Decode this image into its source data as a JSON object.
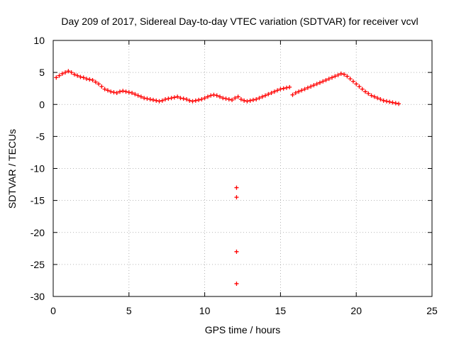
{
  "chart_data": {
    "type": "scatter",
    "title": "Day 209 of 2017, Sidereal Day-to-day VTEC variation (SDTVAR) for receiver vcvl",
    "xlabel": "GPS time / hours",
    "ylabel": "SDTVAR / TECUs",
    "xlim": [
      0,
      25
    ],
    "ylim": [
      -30,
      10
    ],
    "x_ticks": [
      0,
      5,
      10,
      15,
      20,
      25
    ],
    "y_ticks": [
      -30,
      -25,
      -20,
      -15,
      -10,
      -5,
      0,
      5,
      10
    ],
    "grid": true,
    "marker": "+",
    "color": "#ff0000",
    "series": [
      {
        "name": "SDTVAR",
        "x": [
          0.2,
          0.4,
          0.6,
          0.8,
          1.0,
          1.2,
          1.4,
          1.6,
          1.8,
          2.0,
          2.2,
          2.4,
          2.6,
          2.8,
          3.0,
          3.2,
          3.4,
          3.6,
          3.8,
          4.0,
          4.2,
          4.4,
          4.6,
          4.8,
          5.0,
          5.2,
          5.4,
          5.6,
          5.8,
          6.0,
          6.2,
          6.4,
          6.6,
          6.8,
          7.0,
          7.2,
          7.4,
          7.6,
          7.8,
          8.0,
          8.2,
          8.4,
          8.6,
          8.8,
          9.0,
          9.2,
          9.4,
          9.6,
          9.8,
          10.0,
          10.2,
          10.4,
          10.6,
          10.8,
          11.0,
          11.2,
          11.4,
          11.6,
          11.8,
          12.0,
          12.2,
          12.4,
          12.6,
          12.8,
          13.0,
          13.2,
          13.4,
          13.6,
          13.8,
          14.0,
          14.2,
          14.4,
          14.6,
          14.8,
          15.0,
          15.2,
          15.4,
          15.6,
          15.8,
          16.0,
          16.2,
          16.4,
          16.6,
          16.8,
          17.0,
          17.2,
          17.4,
          17.6,
          17.8,
          18.0,
          18.2,
          18.4,
          18.6,
          18.8,
          19.0,
          19.2,
          19.4,
          19.6,
          19.8,
          20.0,
          20.2,
          20.4,
          20.6,
          20.8,
          21.0,
          21.2,
          21.4,
          21.6,
          21.8,
          22.0,
          22.2,
          22.4,
          22.6,
          22.8,
          12.1,
          12.1,
          12.1,
          12.1
        ],
        "y": [
          4.2,
          4.5,
          4.8,
          5.0,
          5.2,
          5.0,
          4.7,
          4.5,
          4.3,
          4.2,
          4.0,
          3.9,
          3.8,
          3.5,
          3.2,
          2.8,
          2.4,
          2.2,
          2.0,
          1.9,
          1.8,
          2.0,
          2.1,
          2.0,
          1.9,
          1.8,
          1.6,
          1.4,
          1.2,
          1.0,
          0.9,
          0.8,
          0.7,
          0.6,
          0.5,
          0.6,
          0.8,
          0.9,
          1.0,
          1.1,
          1.2,
          1.0,
          0.9,
          0.8,
          0.6,
          0.5,
          0.6,
          0.7,
          0.8,
          1.0,
          1.2,
          1.4,
          1.5,
          1.4,
          1.2,
          1.0,
          0.9,
          0.8,
          0.7,
          1.0,
          1.2,
          0.8,
          0.6,
          0.5,
          0.6,
          0.7,
          0.8,
          1.0,
          1.2,
          1.4,
          1.6,
          1.8,
          2.0,
          2.2,
          2.4,
          2.5,
          2.6,
          2.7,
          1.5,
          1.8,
          2.0,
          2.2,
          2.4,
          2.6,
          2.8,
          3.0,
          3.2,
          3.4,
          3.6,
          3.8,
          4.0,
          4.2,
          4.4,
          4.6,
          4.8,
          4.7,
          4.4,
          4.0,
          3.6,
          3.2,
          2.8,
          2.4,
          2.0,
          1.7,
          1.4,
          1.2,
          1.0,
          0.8,
          0.6,
          0.5,
          0.4,
          0.3,
          0.2,
          0.1,
          -13.0,
          -14.5,
          -23.0,
          -28.0
        ]
      }
    ]
  }
}
